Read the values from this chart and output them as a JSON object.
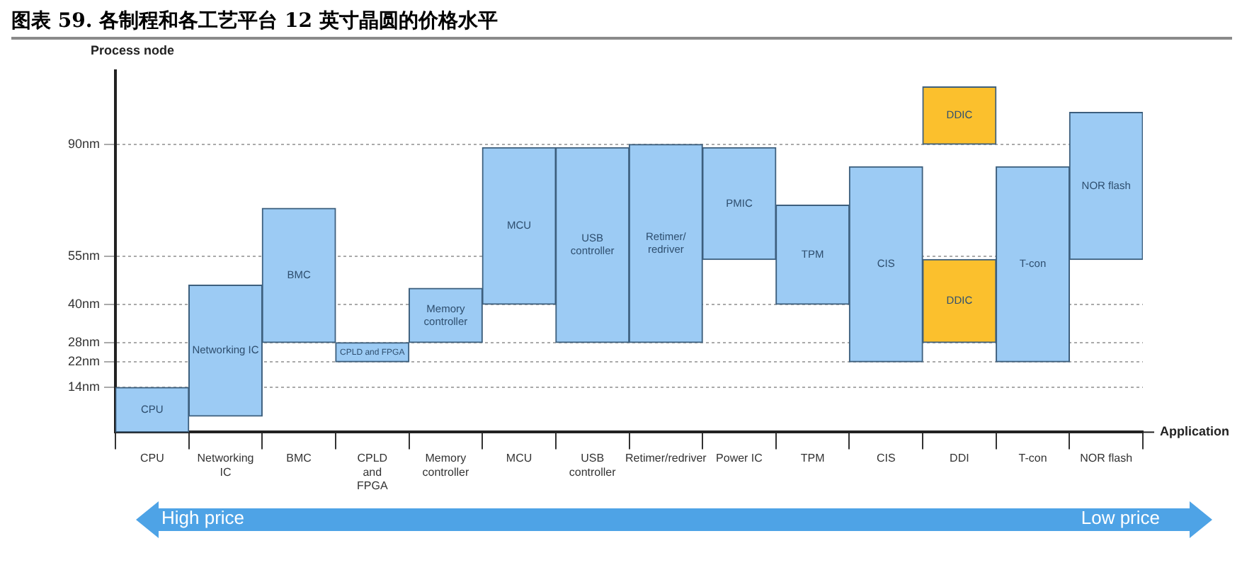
{
  "chart_data": {
    "type": "bar",
    "title": "图表 59. 各制程和各工艺平台 12 英寸晶圆的价格水平",
    "ylabel": "Process node",
    "xlabel": "Application",
    "categories": [
      "CPU",
      "Networking IC",
      "BMC",
      "CPLD and FPGA",
      "Memory controller",
      "MCU",
      "USB controller",
      "Retimer/redriver",
      "Power IC",
      "TPM",
      "CIS",
      "DDI",
      "T-con",
      "NOR flash"
    ],
    "series": [
      {
        "color": "#9ccbf4",
        "base": [
          0,
          5,
          28,
          22,
          28,
          40,
          28,
          28,
          54,
          40,
          22,
          null,
          22,
          54
        ],
        "values": [
          14,
          41,
          42,
          6,
          17,
          49,
          61,
          62,
          35,
          31,
          61,
          null,
          61,
          46
        ],
        "value_labels": [
          "CPU",
          "Networking IC",
          "BMC",
          "CPLD and FPGA",
          "Memory controller",
          "MCU",
          "USB controller",
          "Retimer/redriver",
          "PMIC",
          "TPM",
          "CIS",
          null,
          "T-con",
          "NOR flash"
        ]
      },
      {
        "color": "#fbc02d",
        "base": [
          null,
          null,
          null,
          null,
          null,
          null,
          null,
          null,
          null,
          null,
          null,
          90,
          null,
          null
        ],
        "values": [
          null,
          null,
          null,
          null,
          null,
          null,
          null,
          null,
          null,
          null,
          null,
          18,
          null,
          null
        ],
        "value_labels": [
          null,
          null,
          null,
          null,
          null,
          null,
          null,
          null,
          null,
          null,
          null,
          "DDIC",
          null,
          null
        ]
      },
      {
        "color": "#fbc02d",
        "base": [
          null,
          null,
          null,
          null,
          null,
          null,
          null,
          null,
          null,
          null,
          null,
          28,
          null,
          null
        ],
        "values": [
          null,
          null,
          null,
          null,
          null,
          null,
          null,
          null,
          null,
          null,
          null,
          26,
          null,
          null
        ],
        "value_labels": [
          null,
          null,
          null,
          null,
          null,
          null,
          null,
          null,
          null,
          null,
          null,
          "DDIC",
          null,
          null
        ]
      }
    ],
    "ylim": [
      0,
      113
    ],
    "yticks": [
      {
        "value": 14,
        "label": "14nm"
      },
      {
        "value": 22,
        "label": "22nm"
      },
      {
        "value": 28,
        "label": "28nm"
      },
      {
        "value": 40,
        "label": "40nm"
      },
      {
        "value": 55,
        "label": "55nm"
      },
      {
        "value": 90,
        "label": "90nm"
      }
    ],
    "grid": "y",
    "legend": false,
    "annotations": [
      "High price",
      "Low price"
    ]
  }
}
